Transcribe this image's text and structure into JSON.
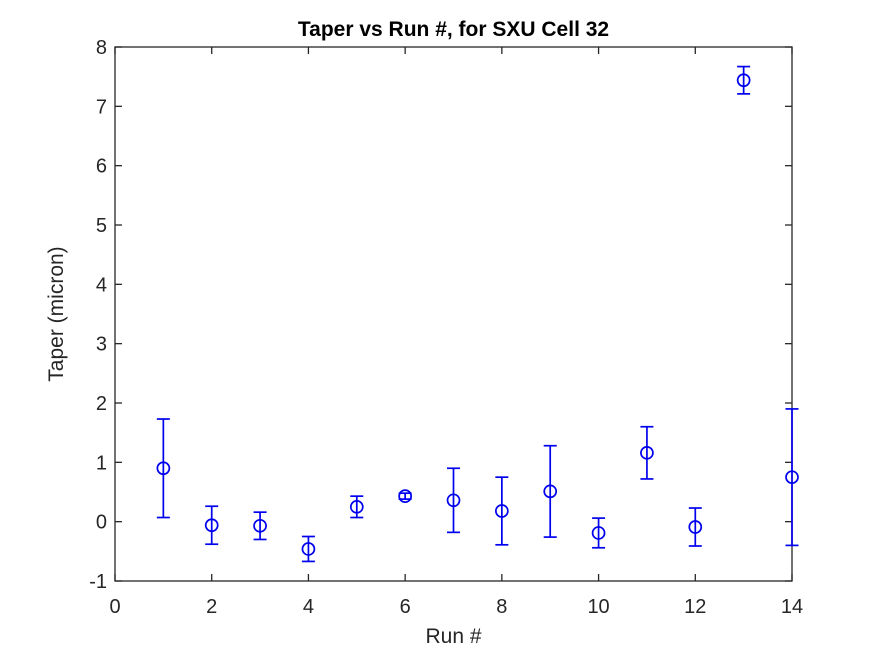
{
  "figure": {
    "title": "Taper vs Run #, for SXU Cell 32",
    "xlabel": "Run #",
    "ylabel": "Taper (micron)"
  },
  "chart_data": {
    "type": "scatter",
    "variant": "errorbar",
    "title": "Taper vs Run #, for SXU Cell 32",
    "xlabel": "Run #",
    "ylabel": "Taper (micron)",
    "x": [
      1,
      2,
      3,
      4,
      5,
      6,
      7,
      8,
      9,
      10,
      11,
      12,
      13,
      14
    ],
    "y": [
      0.9,
      -0.06,
      -0.07,
      -0.46,
      0.25,
      0.43,
      0.36,
      0.18,
      0.51,
      -0.19,
      1.16,
      -0.09,
      7.44,
      0.75
    ],
    "yerr": [
      0.83,
      0.32,
      0.23,
      0.21,
      0.18,
      0.05,
      0.54,
      0.57,
      0.77,
      0.25,
      0.44,
      0.32,
      0.23,
      1.15
    ],
    "xlim": [
      0,
      14
    ],
    "ylim": [
      -1,
      8
    ],
    "xticks": [
      0,
      2,
      4,
      6,
      8,
      10,
      12,
      14
    ],
    "yticks": [
      -1,
      0,
      1,
      2,
      3,
      4,
      5,
      6,
      7,
      8
    ],
    "grid": false,
    "legend_position": "none",
    "marker": "open-circle",
    "series_color": "#0000EE",
    "axis_color": "#262626",
    "title_color": "#000000",
    "background_color": "#FFFFFF"
  }
}
